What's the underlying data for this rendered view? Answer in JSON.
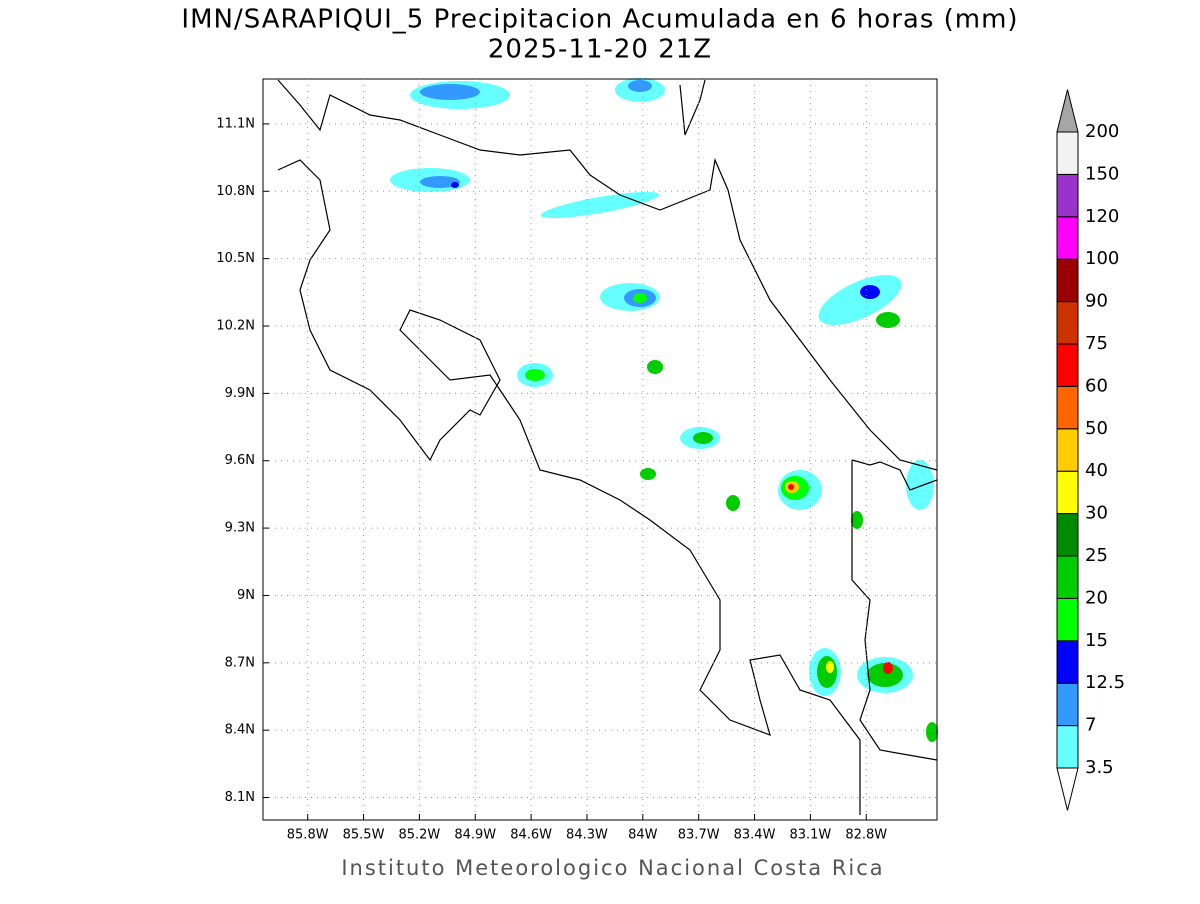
{
  "title": "IMN/SARAPIQUI_5 Precipitacion Acumulada en 6 horas (mm)",
  "subtitle": "2025-11-20 21Z",
  "footer": "Instituto Meteorologico Nacional Costa Rica",
  "map": {
    "xlim": [
      -86.04,
      -82.42
    ],
    "ylim": [
      8.0,
      11.3
    ],
    "xticks": [
      {
        "value": -85.8,
        "label": "85.8W"
      },
      {
        "value": -85.5,
        "label": "85.5W"
      },
      {
        "value": -85.2,
        "label": "85.2W"
      },
      {
        "value": -84.9,
        "label": "84.9W"
      },
      {
        "value": -84.6,
        "label": "84.6W"
      },
      {
        "value": -84.3,
        "label": "84.3W"
      },
      {
        "value": -84.0,
        "label": "84W"
      },
      {
        "value": -83.7,
        "label": "83.7W"
      },
      {
        "value": -83.4,
        "label": "83.4W"
      },
      {
        "value": -83.1,
        "label": "83.1W"
      },
      {
        "value": -82.8,
        "label": "82.8W"
      }
    ],
    "yticks": [
      {
        "value": 8.1,
        "label": "8.1N"
      },
      {
        "value": 8.4,
        "label": "8.4N"
      },
      {
        "value": 8.7,
        "label": "8.7N"
      },
      {
        "value": 9.0,
        "label": "9N"
      },
      {
        "value": 9.3,
        "label": "9.3N"
      },
      {
        "value": 9.6,
        "label": "9.6N"
      },
      {
        "value": 9.9,
        "label": "9.9N"
      },
      {
        "value": 10.2,
        "label": "10.2N"
      },
      {
        "value": 10.5,
        "label": "10.5N"
      },
      {
        "value": 10.8,
        "label": "10.8N"
      },
      {
        "value": 11.1,
        "label": "11.1N"
      }
    ],
    "grid": true
  },
  "colorbar": {
    "levels": [
      3.5,
      7,
      12.5,
      15,
      20,
      25,
      30,
      40,
      50,
      60,
      75,
      90,
      100,
      120,
      150,
      200
    ],
    "colors": [
      "#66ffff",
      "#3399ff",
      "#0000ff",
      "#00ff00",
      "#00cc00",
      "#008a00",
      "#ffff00",
      "#ffcc00",
      "#ff6600",
      "#ff0000",
      "#cc3300",
      "#990000",
      "#ff00ff",
      "#9933cc",
      "#f2f2f2"
    ],
    "under_color": "#ffffff",
    "over_color": "#a6a6a6"
  }
}
